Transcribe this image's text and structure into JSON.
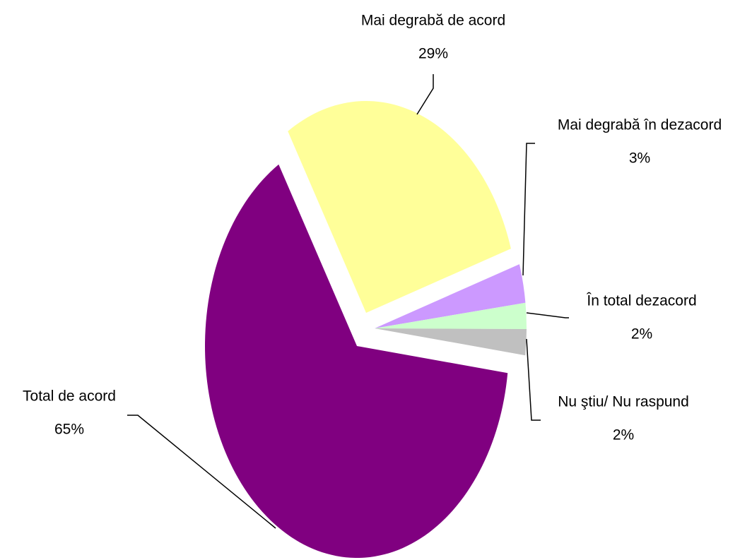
{
  "chart_data": {
    "type": "pie",
    "categories": [
      "Mai degrabă de acord",
      "Mai degrabă în dezacord",
      "În total dezacord",
      "Nu ştiu/ Nu raspund",
      "Total de acord"
    ],
    "values": [
      29,
      3,
      2,
      2,
      65
    ],
    "value_labels": [
      "29%",
      "3%",
      "2%",
      "2%",
      "65%"
    ],
    "colors": [
      "#ffff99",
      "#cc99ff",
      "#ccffcc",
      "#c0c0c0",
      "#800080"
    ]
  }
}
